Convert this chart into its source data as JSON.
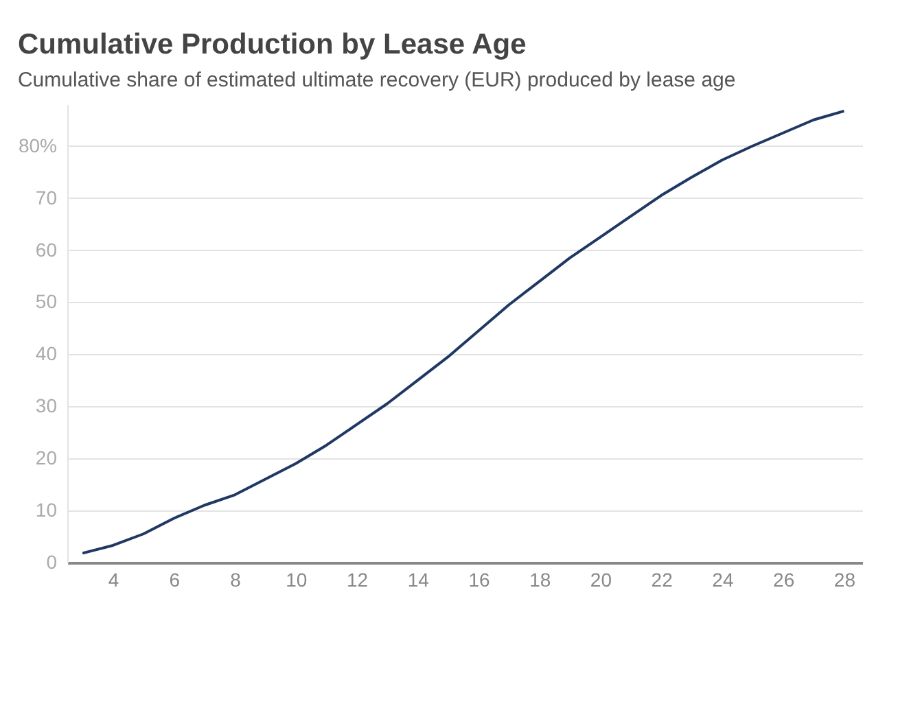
{
  "chart_data": {
    "type": "line",
    "title": "Cumulative Production by Lease Age",
    "subtitle": "Cumulative share of estimated ultimate recovery (EUR) produced by lease age",
    "x": [
      3,
      4,
      5,
      6,
      7,
      8,
      9,
      10,
      11,
      12,
      13,
      14,
      15,
      16,
      17,
      18,
      19,
      20,
      21,
      22,
      23,
      24,
      25,
      26,
      27,
      28
    ],
    "series": [
      {
        "color": "#1f3864",
        "values": [
          1.8,
          3.3,
          5.5,
          8.5,
          11,
          13,
          16,
          19,
          22.5,
          26.5,
          30.5,
          35,
          39.5,
          44.5,
          49.5,
          54,
          58.5,
          62.5,
          66.5,
          70.5,
          74,
          77.3,
          80,
          82.5,
          85,
          86.7
        ]
      }
    ],
    "xlim": [
      2.5,
      28.6
    ],
    "xticks": [
      4,
      6,
      8,
      10,
      12,
      14,
      16,
      18,
      20,
      22,
      24,
      26,
      28
    ],
    "ylim": [
      0,
      88
    ],
    "yticks": [
      0,
      10,
      20,
      30,
      40,
      50,
      60,
      70,
      {
        "value": 80,
        "label": "80%"
      }
    ],
    "grid": "y",
    "marker": "none",
    "line_style": "solid"
  }
}
